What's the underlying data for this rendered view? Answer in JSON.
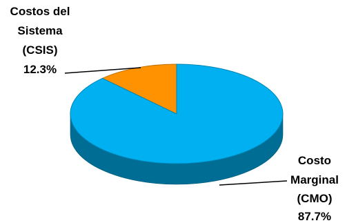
{
  "chart_data": {
    "type": "pie",
    "style": "3d",
    "slices": [
      {
        "label_lines": [
          "Costos del",
          "Sistema",
          "(CSIS)"
        ],
        "percent_label": "12.3%",
        "value": 12.3,
        "color": "#ff9200"
      },
      {
        "label_lines": [
          "Costo",
          "Marginal",
          "(CMO)"
        ],
        "percent_label": "87.7%",
        "value": 87.7,
        "color": "#00b0f0"
      }
    ],
    "legend": "none",
    "leader_lines": true
  }
}
